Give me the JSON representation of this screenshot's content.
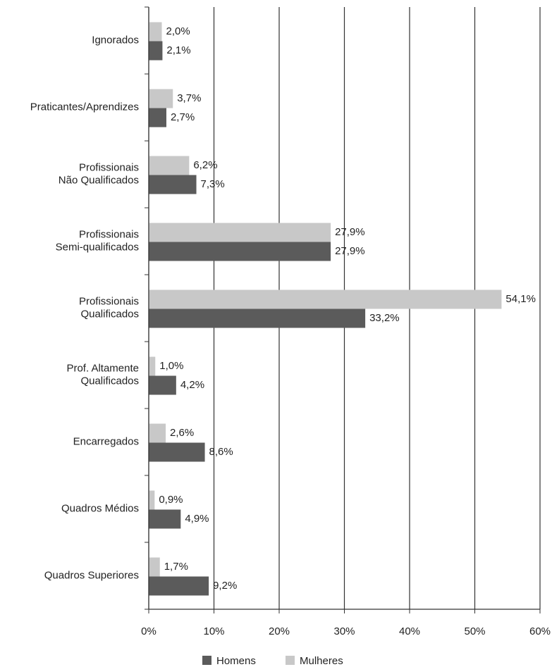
{
  "chart_data": {
    "type": "hbar",
    "categories": [
      "Ignorados",
      "Praticantes/Aprendizes",
      "Profissionais\nNão Qualificados",
      "Profissionais\nSemi-qualificados",
      "Profissionais\nQualificados",
      "Prof. Altamente\nQualificados",
      "Encarregados",
      "Quadros Médios",
      "Quadros Superiores"
    ],
    "series": [
      {
        "name": "Homens",
        "color": "#5b5b5b",
        "values": [
          2.1,
          2.7,
          7.3,
          27.9,
          33.2,
          4.2,
          8.6,
          4.9,
          9.2
        ],
        "value_labels": [
          "2,1%",
          "2,7%",
          "7,3%",
          "27,9%",
          "33,2%",
          "4,2%",
          "8,6%",
          "4,9%",
          "9,2%"
        ]
      },
      {
        "name": "Mulheres",
        "color": "#c8c8c8",
        "values": [
          2.0,
          3.7,
          6.2,
          27.9,
          54.1,
          1.0,
          2.6,
          0.9,
          1.7
        ],
        "value_labels": [
          "2,0%",
          "3,7%",
          "6,2%",
          "27,9%",
          "54,1%",
          "1,0%",
          "2,6%",
          "0,9%",
          "1,7%"
        ]
      }
    ],
    "xlim": [
      0,
      60
    ],
    "xticks": [
      {
        "value": 0,
        "label": "0%"
      },
      {
        "value": 10,
        "label": "10%"
      },
      {
        "value": 20,
        "label": "20%"
      },
      {
        "value": 30,
        "label": "30%"
      },
      {
        "value": 40,
        "label": "40%"
      },
      {
        "value": 50,
        "label": "50%"
      },
      {
        "value": 60,
        "label": "60%"
      }
    ],
    "grid": true,
    "legend": "bottom"
  }
}
